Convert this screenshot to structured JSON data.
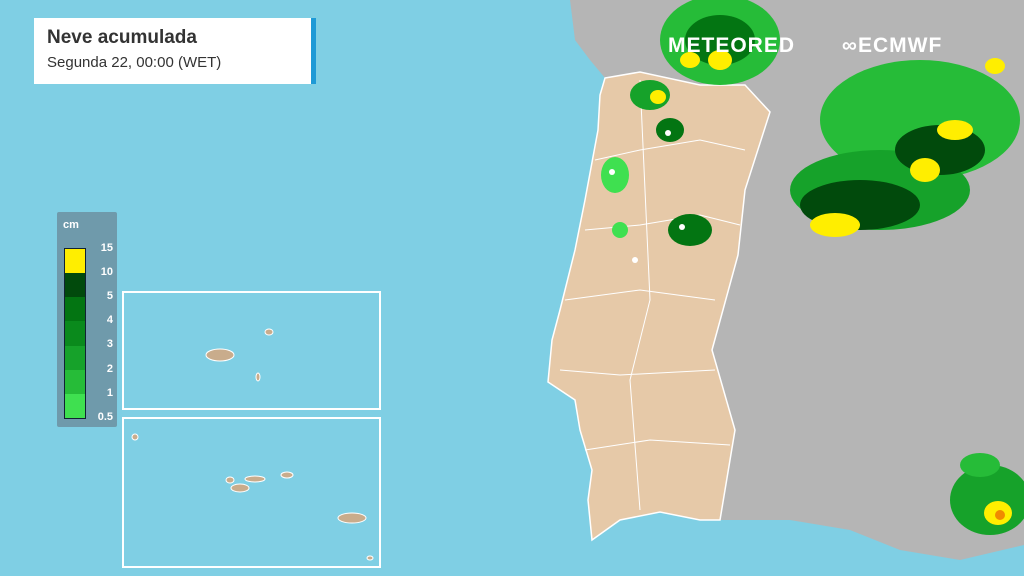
{
  "header": {
    "title": "Neve acumulada",
    "subtitle": "Segunda 22, 00:00 (WET)"
  },
  "legend": {
    "unit": "cm",
    "labels": [
      "15",
      "10",
      "5",
      "4",
      "3",
      "2",
      "1",
      "0.5"
    ],
    "colors": [
      "#ffee00",
      "#014a0c",
      "#037512",
      "#0a8a1c",
      "#16a22a",
      "#26bc38",
      "#3fe050"
    ]
  },
  "logos": {
    "meteored": "METEORED",
    "ecmwf": "ECMWF"
  },
  "colors": {
    "sea": "#7fcfe4",
    "portugal": "#e6c9a8",
    "spain": "#b5b5b5",
    "accent": "#1e9ad6"
  }
}
